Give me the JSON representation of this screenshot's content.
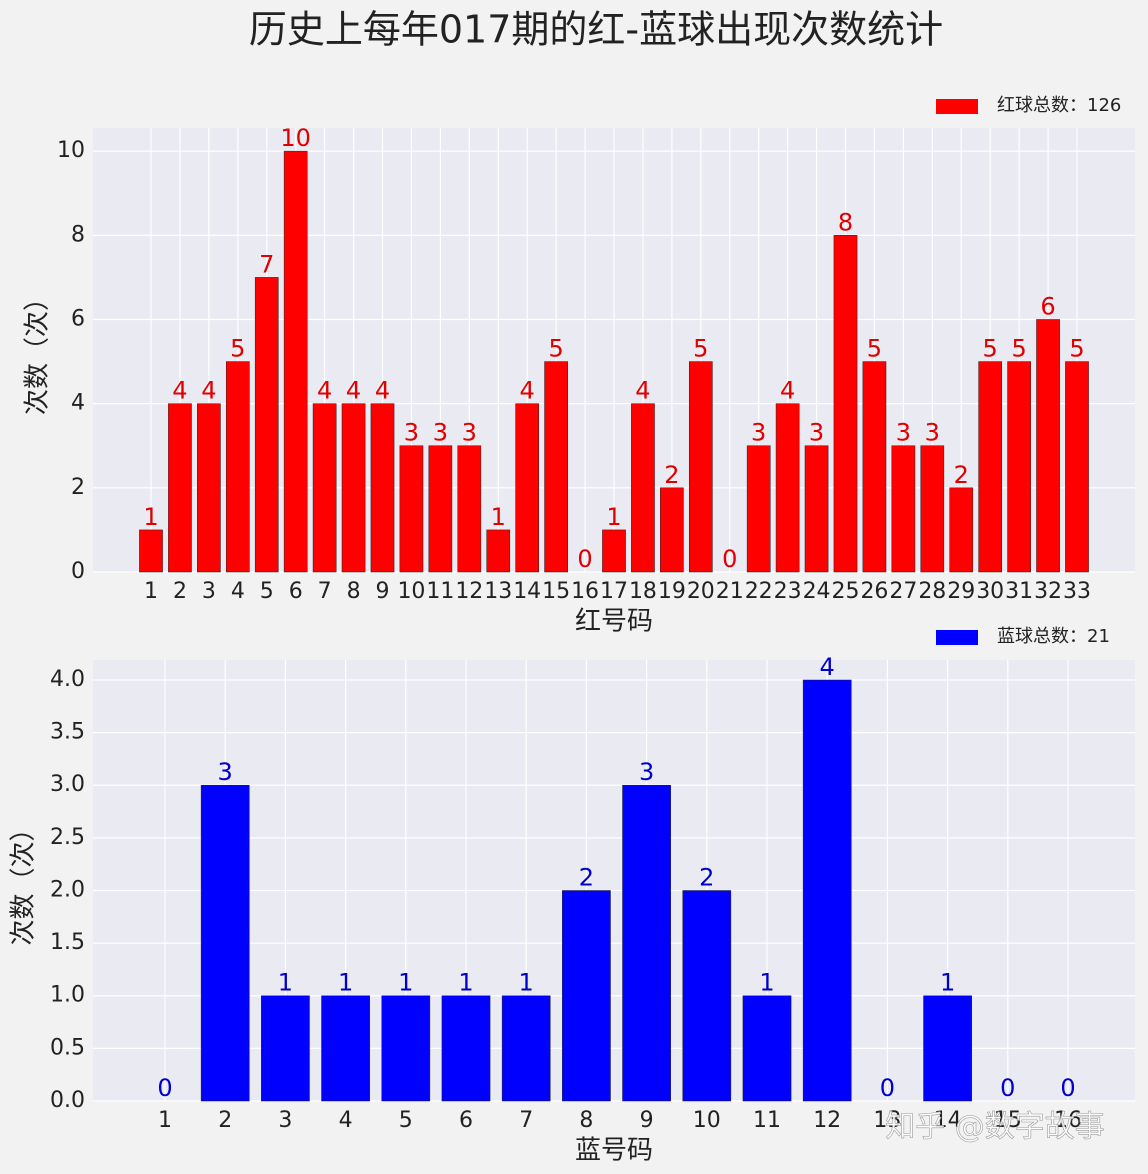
{
  "title": "历史上每年017期的红-蓝球出现次数统计",
  "watermark": "知乎 @数字故事",
  "chart_data": [
    {
      "type": "bar",
      "categories": [
        "1",
        "2",
        "3",
        "4",
        "5",
        "6",
        "7",
        "8",
        "9",
        "10",
        "11",
        "12",
        "13",
        "14",
        "15",
        "16",
        "17",
        "18",
        "19",
        "20",
        "21",
        "22",
        "23",
        "24",
        "25",
        "26",
        "27",
        "28",
        "29",
        "30",
        "31",
        "32",
        "33"
      ],
      "series": [
        {
          "name": "红球总数：126",
          "color": "#ff0000",
          "label_color": "#e00000",
          "values": [
            1,
            4,
            4,
            5,
            7,
            10,
            4,
            4,
            4,
            3,
            3,
            3,
            1,
            4,
            5,
            0,
            1,
            4,
            2,
            5,
            0,
            3,
            4,
            3,
            8,
            5,
            3,
            3,
            2,
            5,
            5,
            6,
            5
          ]
        }
      ],
      "xlabel": "红号码",
      "ylabel": "次数（次）",
      "ylim": [
        0,
        10.55
      ],
      "yticks": [
        0,
        2,
        4,
        6,
        8,
        10
      ],
      "grid": true,
      "legend": "upper right"
    },
    {
      "type": "bar",
      "categories": [
        "1",
        "2",
        "3",
        "4",
        "5",
        "6",
        "7",
        "8",
        "9",
        "10",
        "11",
        "12",
        "13",
        "14",
        "15",
        "16"
      ],
      "series": [
        {
          "name": "蓝球总数：21",
          "color": "#0000ff",
          "label_color": "#0000cc",
          "values": [
            0,
            3,
            1,
            1,
            1,
            1,
            1,
            2,
            3,
            2,
            1,
            4,
            0,
            1,
            0,
            0
          ]
        }
      ],
      "xlabel": "蓝号码",
      "ylabel": "次数（次）",
      "ylim": [
        0,
        4.19
      ],
      "yticks": [
        {
          "value": 0,
          "label": "0.0"
        },
        {
          "value": 0.5,
          "label": "0.5"
        },
        {
          "value": 1,
          "label": "1.0"
        },
        {
          "value": 1.5,
          "label": "1.5"
        },
        {
          "value": 2,
          "label": "2.0"
        },
        {
          "value": 2.5,
          "label": "2.5"
        },
        {
          "value": 3,
          "label": "3.0"
        },
        {
          "value": 3.5,
          "label": "3.5"
        },
        {
          "value": 4,
          "label": "4.0"
        }
      ],
      "grid": true,
      "legend": "upper right"
    }
  ]
}
